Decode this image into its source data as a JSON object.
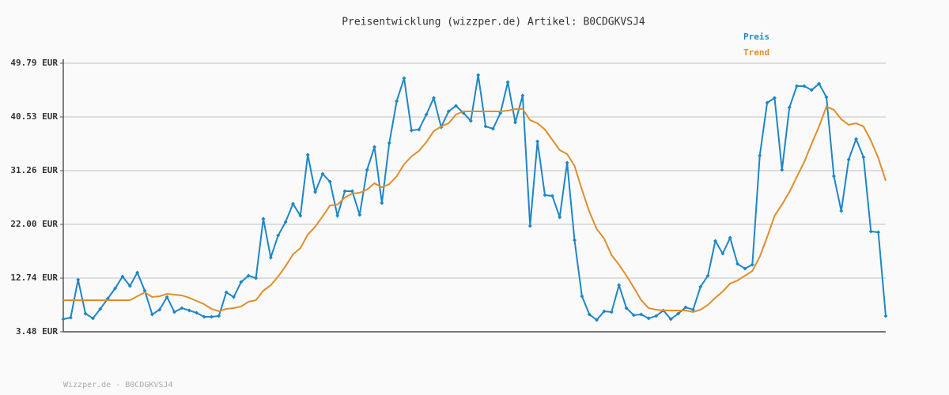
{
  "chart_data": {
    "type": "line",
    "title": "Preisentwicklung (wizzper.de) Artikel: B0CDGKVSJ4",
    "footer": "Wizzper.de - B0CDGKVSJ4",
    "ylim": [
      3.48,
      49.79
    ],
    "yticks": [
      {
        "value": 3.48,
        "label": "3.48 EUR"
      },
      {
        "value": 12.74,
        "label": "12.74 EUR"
      },
      {
        "value": 22.0,
        "label": "22.00 EUR"
      },
      {
        "value": 31.26,
        "label": "31.26 EUR"
      },
      {
        "value": 40.53,
        "label": "40.53 EUR"
      },
      {
        "value": 49.79,
        "label": "49.79 EUR"
      }
    ],
    "grid": true,
    "series": [
      {
        "name": "Preis",
        "color": "#1f86c6",
        "markers": true,
        "values": [
          5.66,
          5.93,
          12.47,
          6.61,
          5.8,
          7.43,
          9.2,
          10.97,
          13.01,
          11.38,
          13.7,
          10.56,
          6.48,
          7.29,
          9.47,
          6.89,
          7.57,
          7.16,
          6.75,
          6.07,
          6.07,
          6.2,
          10.29,
          9.47,
          12.06,
          13.15,
          12.74,
          22.96,
          16.28,
          20.1,
          22.41,
          25.55,
          23.5,
          33.99,
          27.59,
          30.72,
          29.36,
          23.5,
          27.73,
          27.73,
          23.64,
          31.4,
          35.35,
          25.68,
          36.03,
          43.25,
          47.2,
          38.21,
          38.35,
          40.94,
          43.8,
          38.76,
          41.48,
          42.44,
          41.21,
          39.85,
          47.75,
          38.89,
          38.49,
          41.21,
          46.52,
          39.58,
          44.21,
          21.73,
          36.31,
          27.04,
          26.91,
          23.23,
          32.63,
          19.28,
          9.61,
          6.48,
          5.52,
          7.02,
          6.89,
          11.52,
          7.57,
          6.34,
          6.48,
          5.8,
          6.2,
          7.16,
          5.66,
          6.61,
          7.7,
          7.29,
          11.24,
          13.15,
          19.14,
          16.96,
          19.69,
          15.19,
          14.38,
          15.06,
          33.85,
          42.98,
          43.8,
          31.4,
          42.16,
          45.84,
          45.84,
          45.16,
          46.25,
          43.93,
          30.31,
          24.32,
          33.17,
          36.71,
          33.58,
          20.78,
          20.64,
          6.2
        ]
      },
      {
        "name": "Trend",
        "color": "#e08e2b",
        "markers": false,
        "values": [
          8.93,
          8.93,
          8.93,
          8.93,
          8.93,
          8.93,
          8.93,
          8.93,
          8.93,
          8.93,
          9.61,
          10.29,
          9.47,
          9.61,
          10.02,
          9.88,
          9.75,
          9.34,
          8.79,
          8.25,
          7.43,
          7.02,
          7.43,
          7.57,
          7.84,
          8.66,
          8.93,
          10.56,
          11.52,
          13.01,
          14.79,
          16.83,
          17.92,
          20.23,
          21.6,
          23.37,
          25.27,
          25.41,
          26.64,
          27.32,
          27.45,
          27.99,
          29.09,
          28.41,
          28.95,
          30.31,
          32.36,
          33.72,
          34.67,
          36.17,
          38.08,
          38.89,
          39.44,
          40.94,
          41.48,
          41.48,
          41.48,
          41.48,
          41.48,
          41.48,
          41.62,
          41.89,
          41.89,
          39.98,
          39.44,
          38.35,
          36.58,
          34.81,
          34.13,
          32.08,
          27.99,
          24.18,
          21.19,
          19.55,
          16.69,
          15.06,
          13.15,
          11.11,
          8.93,
          7.57,
          7.29,
          7.16,
          7.16,
          7.16,
          7.16,
          6.89,
          7.29,
          8.11,
          9.34,
          10.43,
          11.79,
          12.33,
          13.15,
          13.97,
          16.42,
          19.82,
          23.5,
          25.41,
          27.59,
          30.18,
          32.77,
          35.9,
          38.89,
          42.3,
          41.75,
          40.12,
          39.17,
          39.44,
          38.89,
          36.44,
          33.45,
          29.5
        ]
      }
    ]
  }
}
